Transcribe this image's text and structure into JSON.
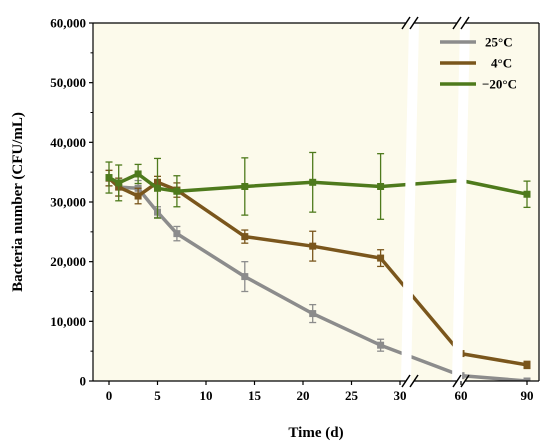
{
  "chart_data": {
    "type": "line",
    "xlabel": "Time (d)",
    "ylabel": "Bacteria number (CFU/mL)",
    "ylim": [
      0,
      60000
    ],
    "x_ticks": [
      0,
      5,
      10,
      15,
      20,
      25,
      30,
      60,
      90
    ],
    "y_ticks": [
      "0",
      "10,000",
      "20,000",
      "30,000",
      "40,000",
      "50,000",
      "60,000"
    ],
    "y_tick_values": [
      0,
      10000,
      20000,
      30000,
      40000,
      50000,
      60000
    ],
    "x_axis_break": "between 30 and 60, and between 60 and 90",
    "background_color": "#fcfaeb",
    "legend_position": "top-right",
    "series": [
      {
        "name": "25°C",
        "color": "#8c8c8c",
        "points": [
          {
            "x": 0,
            "y": 34000,
            "err": 1300
          },
          {
            "x": 1,
            "y": 32500,
            "err": 1500
          },
          {
            "x": 3,
            "y": 32300,
            "err": 1300
          },
          {
            "x": 5,
            "y": 28300,
            "err": 900
          },
          {
            "x": 7,
            "y": 24700,
            "err": 1200
          },
          {
            "x": 14,
            "y": 17500,
            "err": 2500
          },
          {
            "x": 21,
            "y": 11300,
            "err": 1500
          },
          {
            "x": 28,
            "y": 6000,
            "err": 1000
          },
          {
            "x": 60,
            "y": 900,
            "err": 300
          },
          {
            "x": 90,
            "y": 0,
            "err": 200
          }
        ]
      },
      {
        "name": "4°C",
        "color": "#7a561c",
        "points": [
          {
            "x": 0,
            "y": 34000,
            "err": 1300
          },
          {
            "x": 1,
            "y": 32500,
            "err": 1500
          },
          {
            "x": 3,
            "y": 31000,
            "err": 1300
          },
          {
            "x": 5,
            "y": 33300,
            "err": 1000
          },
          {
            "x": 7,
            "y": 32000,
            "err": 1200
          },
          {
            "x": 14,
            "y": 24200,
            "err": 1100
          },
          {
            "x": 21,
            "y": 22600,
            "err": 2500
          },
          {
            "x": 28,
            "y": 20600,
            "err": 1400
          },
          {
            "x": 60,
            "y": 4600,
            "err": 300
          },
          {
            "x": 90,
            "y": 2700,
            "err": 600
          }
        ]
      },
      {
        "name": "−20°C",
        "color": "#4e7a1c",
        "points": [
          {
            "x": 0,
            "y": 34100,
            "err": 2600
          },
          {
            "x": 1,
            "y": 33200,
            "err": 3000
          },
          {
            "x": 3,
            "y": 34700,
            "err": 1600
          },
          {
            "x": 5,
            "y": 32300,
            "err": 5000
          },
          {
            "x": 7,
            "y": 31800,
            "err": 2600
          },
          {
            "x": 14,
            "y": 32600,
            "err": 4800
          },
          {
            "x": 21,
            "y": 33300,
            "err": 5000
          },
          {
            "x": 28,
            "y": 32600,
            "err": 5500
          },
          {
            "x": 60,
            "y": 33600,
            "err": 2100
          },
          {
            "x": 90,
            "y": 31300,
            "err": 2200
          }
        ]
      }
    ]
  }
}
